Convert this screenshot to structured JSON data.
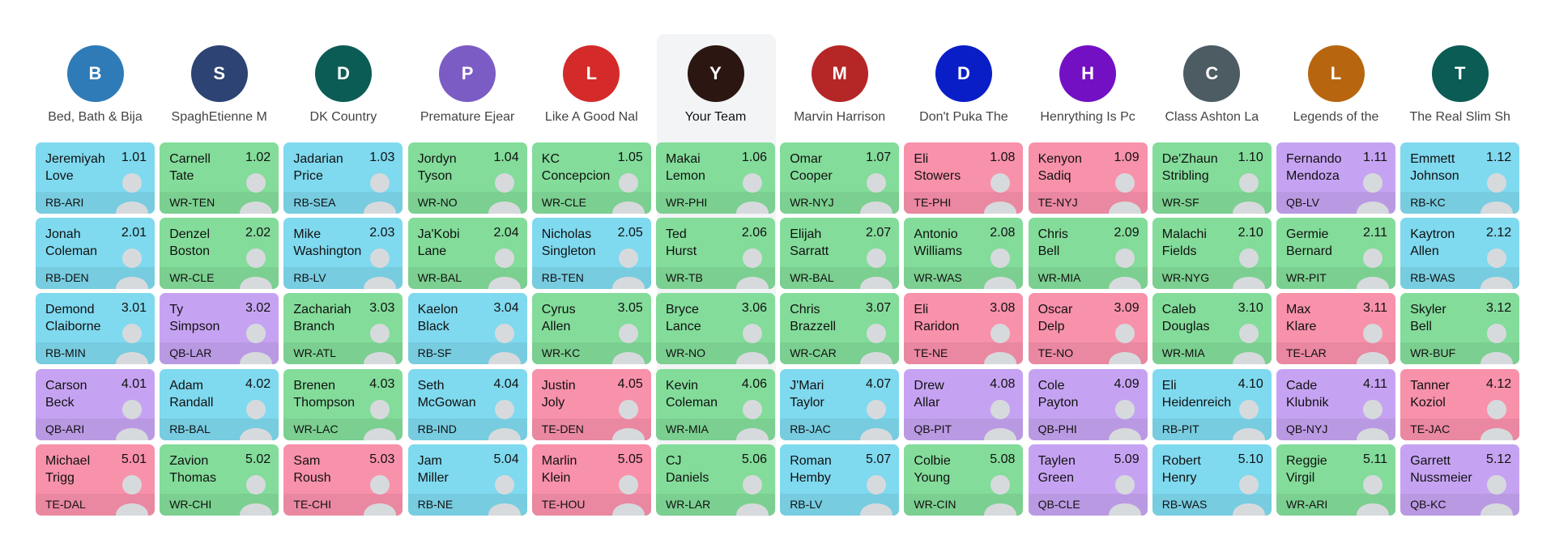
{
  "teams": [
    {
      "initial": "B",
      "name": "Bed, Bath & Bija",
      "color": "#2e7bb8"
    },
    {
      "initial": "S",
      "name": "SpaghEtienne M",
      "color": "#2d4373"
    },
    {
      "initial": "D",
      "name": "DK Country",
      "color": "#0b5c55"
    },
    {
      "initial": "P",
      "name": "Premature Ejear",
      "color": "#7a5cc4"
    },
    {
      "initial": "L",
      "name": "Like A Good Nal",
      "color": "#d42a2a"
    },
    {
      "initial": "Y",
      "name": "Your Team",
      "color": "#2b1612"
    },
    {
      "initial": "M",
      "name": "Marvin Harrison",
      "color": "#b52626"
    },
    {
      "initial": "D",
      "name": "Don't Puka The",
      "color": "#0a1ec8"
    },
    {
      "initial": "H",
      "name": "Henrything Is Pc",
      "color": "#7310c4"
    },
    {
      "initial": "C",
      "name": "Class Ashton La",
      "color": "#4d5b63"
    },
    {
      "initial": "L",
      "name": "Legends of the",
      "color": "#b86510"
    },
    {
      "initial": "T",
      "name": "The Real Slim Sh",
      "color": "#0b5c55"
    }
  ],
  "position_colors": {
    "RB": "#7fd9ef",
    "WR": "#83dc9a",
    "TE": "#f891aa",
    "QB": "#c6a3f2"
  },
  "rounds": [
    [
      [
        "Jeremiyah",
        "Love",
        "1.01",
        "RB-ARI"
      ],
      [
        "Carnell",
        "Tate",
        "1.02",
        "WR-TEN"
      ],
      [
        "Jadarian",
        "Price",
        "1.03",
        "RB-SEA"
      ],
      [
        "Jordyn",
        "Tyson",
        "1.04",
        "WR-NO"
      ],
      [
        "KC",
        "Concepcion",
        "1.05",
        "WR-CLE"
      ],
      [
        "Makai",
        "Lemon",
        "1.06",
        "WR-PHI"
      ],
      [
        "Omar",
        "Cooper",
        "1.07",
        "WR-NYJ"
      ],
      [
        "Eli",
        "Stowers",
        "1.08",
        "TE-PHI"
      ],
      [
        "Kenyon",
        "Sadiq",
        "1.09",
        "TE-NYJ"
      ],
      [
        "De'Zhaun",
        "Stribling",
        "1.10",
        "WR-SF"
      ],
      [
        "Fernando",
        "Mendoza",
        "1.11",
        "QB-LV"
      ],
      [
        "Emmett",
        "Johnson",
        "1.12",
        "RB-KC"
      ]
    ],
    [
      [
        "Jonah",
        "Coleman",
        "2.01",
        "RB-DEN"
      ],
      [
        "Denzel",
        "Boston",
        "2.02",
        "WR-CLE"
      ],
      [
        "Mike",
        "Washington",
        "2.03",
        "RB-LV"
      ],
      [
        "Ja'Kobi",
        "Lane",
        "2.04",
        "WR-BAL"
      ],
      [
        "Nicholas",
        "Singleton",
        "2.05",
        "RB-TEN"
      ],
      [
        "Ted",
        "Hurst",
        "2.06",
        "WR-TB"
      ],
      [
        "Elijah",
        "Sarratt",
        "2.07",
        "WR-BAL"
      ],
      [
        "Antonio",
        "Williams",
        "2.08",
        "WR-WAS"
      ],
      [
        "Chris",
        "Bell",
        "2.09",
        "WR-MIA"
      ],
      [
        "Malachi",
        "Fields",
        "2.10",
        "WR-NYG"
      ],
      [
        "Germie",
        "Bernard",
        "2.11",
        "WR-PIT"
      ],
      [
        "Kaytron",
        "Allen",
        "2.12",
        "RB-WAS"
      ]
    ],
    [
      [
        "Demond",
        "Claiborne",
        "3.01",
        "RB-MIN"
      ],
      [
        "Ty",
        "Simpson",
        "3.02",
        "QB-LAR"
      ],
      [
        "Zachariah",
        "Branch",
        "3.03",
        "WR-ATL"
      ],
      [
        "Kaelon",
        "Black",
        "3.04",
        "RB-SF"
      ],
      [
        "Cyrus",
        "Allen",
        "3.05",
        "WR-KC"
      ],
      [
        "Bryce",
        "Lance",
        "3.06",
        "WR-NO"
      ],
      [
        "Chris",
        "Brazzell",
        "3.07",
        "WR-CAR"
      ],
      [
        "Eli",
        "Raridon",
        "3.08",
        "TE-NE"
      ],
      [
        "Oscar",
        "Delp",
        "3.09",
        "TE-NO"
      ],
      [
        "Caleb",
        "Douglas",
        "3.10",
        "WR-MIA"
      ],
      [
        "Max",
        "Klare",
        "3.11",
        "TE-LAR"
      ],
      [
        "Skyler",
        "Bell",
        "3.12",
        "WR-BUF"
      ]
    ],
    [
      [
        "Carson",
        "Beck",
        "4.01",
        "QB-ARI"
      ],
      [
        "Adam",
        "Randall",
        "4.02",
        "RB-BAL"
      ],
      [
        "Brenen",
        "Thompson",
        "4.03",
        "WR-LAC"
      ],
      [
        "Seth",
        "McGowan",
        "4.04",
        "RB-IND"
      ],
      [
        "Justin",
        "Joly",
        "4.05",
        "TE-DEN"
      ],
      [
        "Kevin",
        "Coleman",
        "4.06",
        "WR-MIA"
      ],
      [
        "J'Mari",
        "Taylor",
        "4.07",
        "RB-JAC"
      ],
      [
        "Drew",
        "Allar",
        "4.08",
        "QB-PIT"
      ],
      [
        "Cole",
        "Payton",
        "4.09",
        "QB-PHI"
      ],
      [
        "Eli",
        "Heidenreich",
        "4.10",
        "RB-PIT"
      ],
      [
        "Cade",
        "Klubnik",
        "4.11",
        "QB-NYJ"
      ],
      [
        "Tanner",
        "Koziol",
        "4.12",
        "TE-JAC"
      ]
    ],
    [
      [
        "Michael",
        "Trigg",
        "5.01",
        "TE-DAL"
      ],
      [
        "Zavion",
        "Thomas",
        "5.02",
        "WR-CHI"
      ],
      [
        "Sam",
        "Roush",
        "5.03",
        "TE-CHI"
      ],
      [
        "Jam",
        "Miller",
        "5.04",
        "RB-NE"
      ],
      [
        "Marlin",
        "Klein",
        "5.05",
        "TE-HOU"
      ],
      [
        "CJ",
        "Daniels",
        "5.06",
        "WR-LAR"
      ],
      [
        "Roman",
        "Hemby",
        "5.07",
        "RB-LV"
      ],
      [
        "Colbie",
        "Young",
        "5.08",
        "WR-CIN"
      ],
      [
        "Taylen",
        "Green",
        "5.09",
        "QB-CLE"
      ],
      [
        "Robert",
        "Henry",
        "5.10",
        "RB-WAS"
      ],
      [
        "Reggie",
        "Virgil",
        "5.11",
        "WR-ARI"
      ],
      [
        "Garrett",
        "Nussmeier",
        "5.12",
        "QB-KC"
      ]
    ]
  ]
}
